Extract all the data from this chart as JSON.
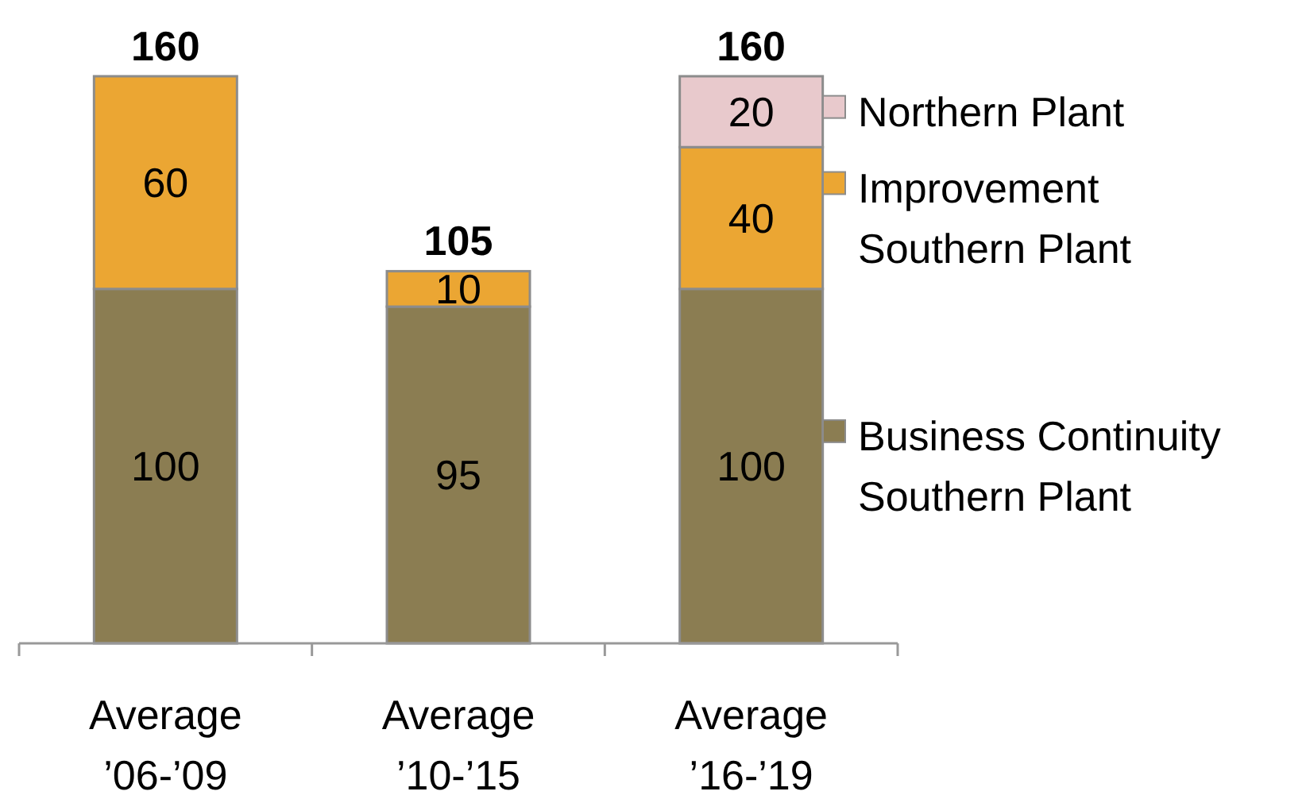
{
  "chart_data": {
    "type": "bar",
    "stacked": true,
    "categories": [
      "Average\n’06-’09",
      "Average\n’10-’15",
      "Average\n’16-’19"
    ],
    "series": [
      {
        "name": "Business Continuity\nSouthern Plant",
        "color": "#8b7d52",
        "values": [
          100,
          95,
          100
        ]
      },
      {
        "name": "Improvement\nSouthern Plant",
        "color": "#eba633",
        "values": [
          60,
          10,
          40
        ]
      },
      {
        "name": "Northern Plant",
        "color": "#e8c9cc",
        "values": [
          null,
          null,
          20
        ]
      }
    ],
    "data_labels": true,
    "totals": [
      "160",
      "105",
      "160"
    ],
    "legend": "right"
  }
}
